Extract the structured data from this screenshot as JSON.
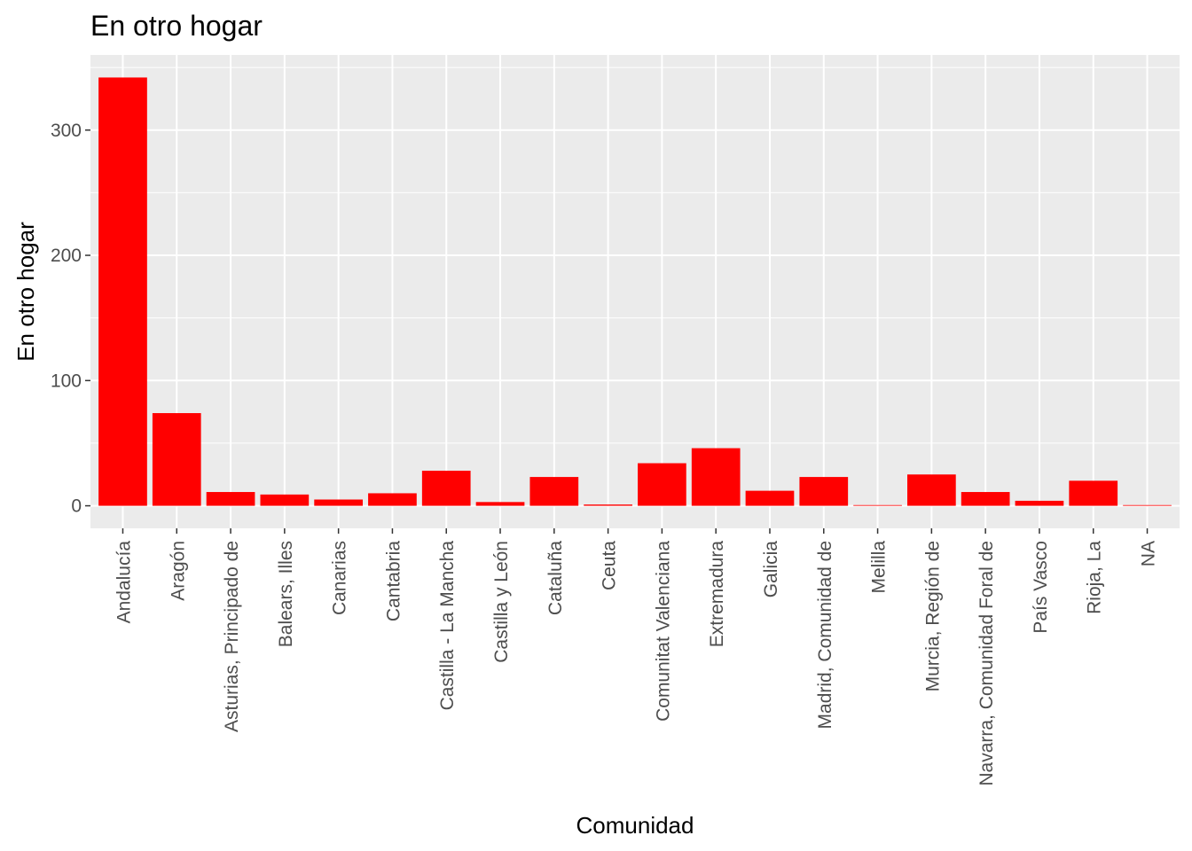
{
  "chart_data": {
    "type": "bar",
    "title": "En otro hogar",
    "xlabel": "Comunidad",
    "ylabel": "En otro hogar",
    "categories": [
      "Andalucía",
      "Aragón",
      "Asturias, Principado de",
      "Balears, Illes",
      "Canarias",
      "Cantabria",
      "Castilla - La Mancha",
      "Castilla y León",
      "Cataluña",
      "Ceuta",
      "Comunitat Valenciana",
      "Extremadura",
      "Galicia",
      "Madrid, Comunidad de",
      "Melilla",
      "Murcia, Región de",
      "Navarra, Comunidad Foral de",
      "País Vasco",
      "Rioja, La",
      "NA"
    ],
    "values": [
      342,
      74,
      11,
      9,
      5,
      10,
      28,
      3,
      23,
      1,
      34,
      46,
      12,
      23,
      0.5,
      25,
      11,
      4,
      20,
      0.5
    ],
    "ylim": [
      -18,
      360
    ],
    "yticks": [
      0,
      100,
      200,
      300
    ],
    "grid": true,
    "legend": "none",
    "colors": {
      "bar": "#ff0000",
      "panel": "#ebebeb",
      "grid": "#ffffff"
    }
  }
}
